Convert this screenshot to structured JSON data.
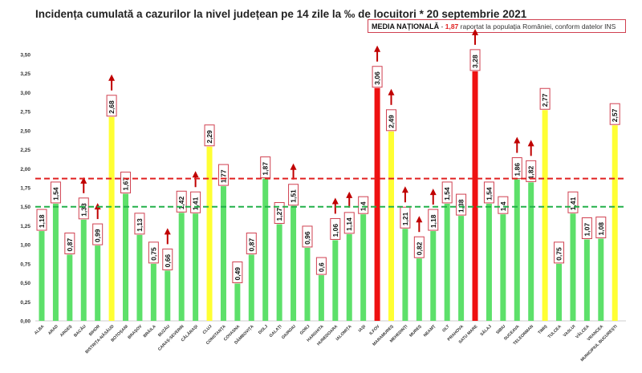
{
  "chart_data": {
    "type": "bar",
    "title": "Incidența cumulată a cazurilor la nivel județean pe 14 zile la ‰ de locuitori * 20 septembrie 2021",
    "legend": {
      "label": "MEDIA NAȚIONALĂ",
      "separator": " - ",
      "value": "1,87",
      "text": " raportat la populația României, conform datelor INS"
    },
    "categories": [
      "ALBA",
      "ARAD",
      "ARGEȘ",
      "BACĂU",
      "BIHOR",
      "BISTRIȚA-NĂSĂUD",
      "BOTOȘANI",
      "BRAȘOV",
      "BRĂILA",
      "BUZĂU",
      "CARAȘ-SEVERIN",
      "CĂLĂRAȘI",
      "CLUJ",
      "CONSTANȚA",
      "COVASNA",
      "DÂMBOVIȚA",
      "DOLJ",
      "GALAȚI",
      "GIURGIU",
      "GORJ",
      "HARGHITA",
      "HUNEDOARA",
      "IALOMIȚA",
      "IAȘI",
      "ILFOV",
      "MARAMUREȘ",
      "MEHEDINȚI",
      "MUREȘ",
      "NEAMȚ",
      "OLT",
      "PRAHOVA",
      "SATU MARE",
      "SĂLAJ",
      "SIBIU",
      "SUCEAVA",
      "TELEORMAN",
      "TIMIȘ",
      "TULCEA",
      "VASLUI",
      "VÂLCEA",
      "VRANCEA",
      "MUNICIPIUL BUCUREȘTI"
    ],
    "values": [
      1.18,
      1.54,
      0.87,
      1.33,
      0.99,
      2.68,
      1.67,
      1.13,
      0.75,
      0.66,
      1.42,
      1.41,
      2.29,
      1.77,
      0.49,
      0.87,
      1.87,
      1.27,
      1.51,
      0.96,
      0.6,
      1.06,
      1.14,
      1.4,
      3.06,
      2.49,
      1.21,
      0.82,
      1.18,
      1.54,
      1.38,
      3.28,
      1.54,
      1.4,
      1.86,
      1.82,
      2.77,
      0.75,
      1.41,
      1.07,
      1.08,
      2.57
    ],
    "labels": [
      "1,18",
      "1,54",
      "0,87",
      "1,33",
      "0,99",
      "2,68",
      "1,67",
      "1,13",
      "0,75",
      "0,66",
      "1,42",
      "1,41",
      "2,29",
      "1,77",
      "0,49",
      "0,87",
      "1,87",
      "1,27",
      "1,51",
      "0,96",
      "0,6",
      "1,06",
      "1,14",
      "1,4",
      "3,06",
      "2,49",
      "1,21",
      "0,82",
      "1,18",
      "1,54",
      "1,38",
      "3,28",
      "1,54",
      "1,4",
      "1,86",
      "1,82",
      "2,77",
      "0,75",
      "1,41",
      "1,07",
      "1,08",
      "2,57"
    ],
    "rising": [
      "BACĂU",
      "BIHOR",
      "BISTRIȚA-NĂSĂUD",
      "BUZĂU",
      "CĂLĂRAȘI",
      "GIURGIU",
      "HUNEDOARA",
      "IALOMIȚA",
      "ILFOV",
      "MARAMUREȘ",
      "MEHEDINȚI",
      "MUREȘ",
      "NEAMȚ",
      "SATU MARE",
      "SUCEAVA",
      "TELEORMAN"
    ],
    "ylim": [
      0,
      3.5
    ],
    "yticks": [
      "0,00",
      "0,25",
      "0,50",
      "0,75",
      "1,00",
      "1,25",
      "1,50",
      "1,75",
      "2,00",
      "2,25",
      "2,50",
      "2,75",
      "3,00",
      "3,25",
      "3,50"
    ],
    "reference_lines": [
      {
        "value": 1.87,
        "color": "#e02020"
      },
      {
        "value": 1.5,
        "color": "#22b04a"
      }
    ],
    "colors": {
      "low": "#5de06a",
      "medium": "#ffff33",
      "high": "#ee1111",
      "arrow": "#c00000",
      "label_border": "#d04050"
    },
    "grid": false
  }
}
